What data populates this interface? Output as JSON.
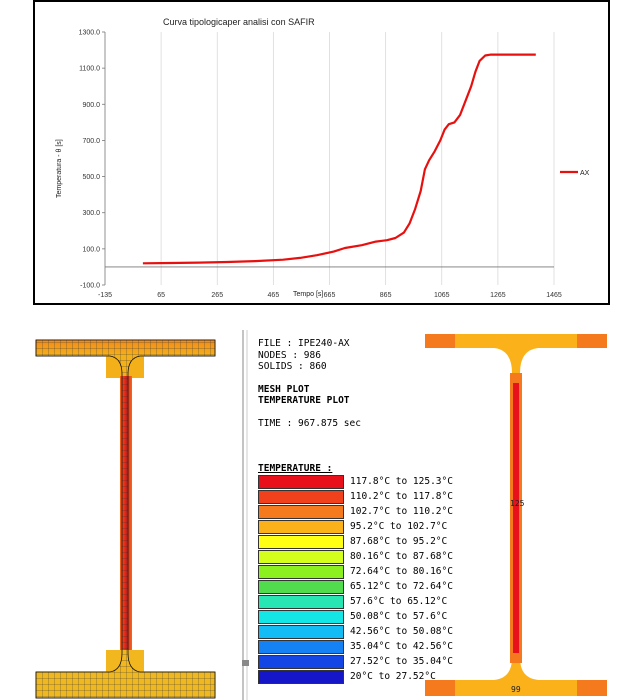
{
  "chart_data": {
    "type": "line",
    "title": "Curva tipologicaper analisi con SAFIR",
    "xlabel": "Tempo [s]",
    "ylabel": "Temperatura - θ [s]",
    "xlim": [
      -135,
      1465
    ],
    "ylim": [
      -100,
      1300
    ],
    "x_ticks": [
      "-135",
      "65",
      "265",
      "465",
      "665",
      "865",
      "1065",
      "1265",
      "1465"
    ],
    "y_ticks": [
      "-100.0",
      "100.0",
      "300.0",
      "500.0",
      "700.0",
      "900.0",
      "1100.0",
      "1300.0"
    ],
    "grid": "vertical",
    "legend": "right",
    "series": [
      {
        "name": "AX",
        "color": "#e8100e",
        "points": [
          [
            0,
            20
          ],
          [
            100,
            22
          ],
          [
            200,
            24
          ],
          [
            300,
            27
          ],
          [
            400,
            32
          ],
          [
            500,
            40
          ],
          [
            560,
            50
          ],
          [
            620,
            65
          ],
          [
            680,
            85
          ],
          [
            720,
            105
          ],
          [
            780,
            120
          ],
          [
            830,
            140
          ],
          [
            870,
            148
          ],
          [
            900,
            160
          ],
          [
            930,
            190
          ],
          [
            950,
            240
          ],
          [
            970,
            320
          ],
          [
            990,
            420
          ],
          [
            1005,
            540
          ],
          [
            1020,
            590
          ],
          [
            1040,
            640
          ],
          [
            1060,
            700
          ],
          [
            1075,
            760
          ],
          [
            1090,
            790
          ],
          [
            1110,
            800
          ],
          [
            1130,
            840
          ],
          [
            1150,
            920
          ],
          [
            1170,
            1000
          ],
          [
            1185,
            1080
          ],
          [
            1200,
            1140
          ],
          [
            1220,
            1170
          ],
          [
            1240,
            1175
          ],
          [
            1300,
            1175
          ],
          [
            1400,
            1175
          ]
        ]
      }
    ]
  },
  "mesh_panel": {
    "file": "FILE : IPE240-AX",
    "nodes": "NODES : 986",
    "solids": "SOLIDS : 860",
    "plot1": "MESH PLOT",
    "plot2": "TEMPERATURE PLOT",
    "time": "TIME : 967.875 sec",
    "temp_title": "TEMPERATURE :",
    "legend": [
      {
        "label": "117.8°C to 125.3°C",
        "color": "#e8101a"
      },
      {
        "label": "110.2°C to 117.8°C",
        "color": "#f0401c"
      },
      {
        "label": "102.7°C to 110.2°C",
        "color": "#f57a1e"
      },
      {
        "label": "95.2°C to 102.7°C",
        "color": "#fbb21a"
      },
      {
        "label": "87.68°C to 95.2°C",
        "color": "#ffff14"
      },
      {
        "label": "80.16°C to 87.68°C",
        "color": "#d4ff1c"
      },
      {
        "label": "72.64°C to 80.16°C",
        "color": "#8cf01e"
      },
      {
        "label": "65.12°C to 72.64°C",
        "color": "#50dc4c"
      },
      {
        "label": "57.6°C to 65.12°C",
        "color": "#28e6b4"
      },
      {
        "label": "50.08°C to 57.6°C",
        "color": "#14e6e6"
      },
      {
        "label": "42.56°C to 50.08°C",
        "color": "#14bcf5"
      },
      {
        "label": "35.04°C to 42.56°C",
        "color": "#1482f5"
      },
      {
        "label": "27.52°C to 35.04°C",
        "color": "#1446e6"
      },
      {
        "label": "20°C to 27.52°C",
        "color": "#1416c8"
      }
    ],
    "section_label_top": "125",
    "section_label_bottom": "99"
  }
}
